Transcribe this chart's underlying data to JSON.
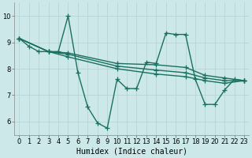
{
  "background_color": "#cce8e8",
  "grid_color": "#b0d0d0",
  "line_color": "#1a7060",
  "marker": "+",
  "marker_size": 4,
  "linewidth": 1.0,
  "xlabel": "Humidex (Indice chaleur)",
  "xlabel_fontsize": 7,
  "tick_fontsize": 6,
  "xlim": [
    -0.5,
    23.5
  ],
  "ylim": [
    5.5,
    10.5
  ],
  "yticks": [
    6,
    7,
    8,
    9,
    10
  ],
  "xticks": [
    0,
    1,
    2,
    3,
    4,
    5,
    6,
    7,
    8,
    9,
    10,
    11,
    12,
    13,
    14,
    15,
    16,
    17,
    18,
    19,
    20,
    21,
    22,
    23
  ],
  "series1": [
    [
      0,
      9.15
    ],
    [
      1,
      8.85
    ],
    [
      2,
      8.65
    ],
    [
      3,
      8.65
    ],
    [
      4,
      8.65
    ],
    [
      5,
      10.0
    ],
    [
      6,
      7.85
    ],
    [
      7,
      6.55
    ],
    [
      8,
      5.95
    ],
    [
      9,
      5.75
    ],
    [
      10,
      7.6
    ],
    [
      11,
      7.25
    ],
    [
      12,
      7.25
    ],
    [
      13,
      8.25
    ],
    [
      14,
      8.2
    ],
    [
      15,
      9.35
    ],
    [
      16,
      9.3
    ],
    [
      17,
      9.3
    ],
    [
      18,
      7.6
    ],
    [
      19,
      6.65
    ],
    [
      20,
      6.65
    ],
    [
      21,
      7.2
    ],
    [
      22,
      7.6
    ],
    [
      23,
      7.55
    ]
  ],
  "series2": [
    [
      0,
      9.15
    ],
    [
      3,
      8.65
    ],
    [
      5,
      8.6
    ],
    [
      10,
      8.2
    ],
    [
      14,
      8.15
    ],
    [
      17,
      8.05
    ],
    [
      19,
      7.75
    ],
    [
      21,
      7.65
    ],
    [
      23,
      7.55
    ]
  ],
  "series3": [
    [
      0,
      9.15
    ],
    [
      3,
      8.65
    ],
    [
      5,
      8.55
    ],
    [
      10,
      8.1
    ],
    [
      14,
      7.95
    ],
    [
      17,
      7.85
    ],
    [
      19,
      7.65
    ],
    [
      21,
      7.55
    ],
    [
      23,
      7.55
    ]
  ],
  "series4": [
    [
      0,
      9.15
    ],
    [
      3,
      8.65
    ],
    [
      5,
      8.45
    ],
    [
      10,
      8.0
    ],
    [
      14,
      7.8
    ],
    [
      17,
      7.7
    ],
    [
      19,
      7.55
    ],
    [
      21,
      7.45
    ],
    [
      23,
      7.55
    ]
  ]
}
